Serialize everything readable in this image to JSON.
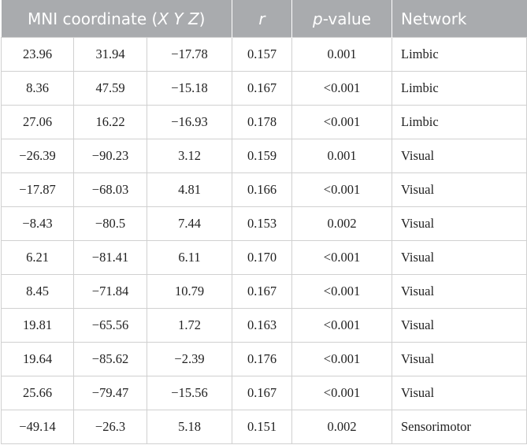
{
  "header": [
    [
      {
        "text": "MNI coordinate (",
        "italic": false
      },
      {
        "text": "X Y Z",
        "italic": true
      },
      {
        "text": ")",
        "italic": false
      }
    ],
    [
      {
        "text": "r",
        "italic": true
      }
    ],
    [
      {
        "text": "p",
        "italic": true
      },
      {
        "text": "-value",
        "italic": false
      }
    ],
    [
      {
        "text": "Network",
        "italic": false
      }
    ]
  ],
  "table": {
    "rows": [
      [
        "23.96",
        "31.94",
        "−17.78",
        "0.157",
        "0.001",
        "Limbic"
      ],
      [
        "8.36",
        "47.59",
        "−15.18",
        "0.167",
        "<0.001",
        "Limbic"
      ],
      [
        "27.06",
        "16.22",
        "−16.93",
        "0.178",
        "<0.001",
        "Limbic"
      ],
      [
        "−26.39",
        "−90.23",
        "3.12",
        "0.159",
        "0.001",
        "Visual"
      ],
      [
        "−17.87",
        "−68.03",
        "4.81",
        "0.166",
        "<0.001",
        "Visual"
      ],
      [
        "−8.43",
        "−80.5",
        "7.44",
        "0.153",
        "0.002",
        "Visual"
      ],
      [
        "6.21",
        "−81.41",
        "6.11",
        "0.170",
        "<0.001",
        "Visual"
      ],
      [
        "8.45",
        "−71.84",
        "10.79",
        "0.167",
        "<0.001",
        "Visual"
      ],
      [
        "19.81",
        "−65.56",
        "1.72",
        "0.163",
        "<0.001",
        "Visual"
      ],
      [
        "19.64",
        "−85.62",
        "−2.39",
        "0.176",
        "<0.001",
        "Visual"
      ],
      [
        "25.66",
        "−79.47",
        "−15.56",
        "0.167",
        "<0.001",
        "Visual"
      ],
      [
        "−49.14",
        "−26.3",
        "5.18",
        "0.151",
        "0.002",
        "Sensorimotor"
      ]
    ]
  }
}
